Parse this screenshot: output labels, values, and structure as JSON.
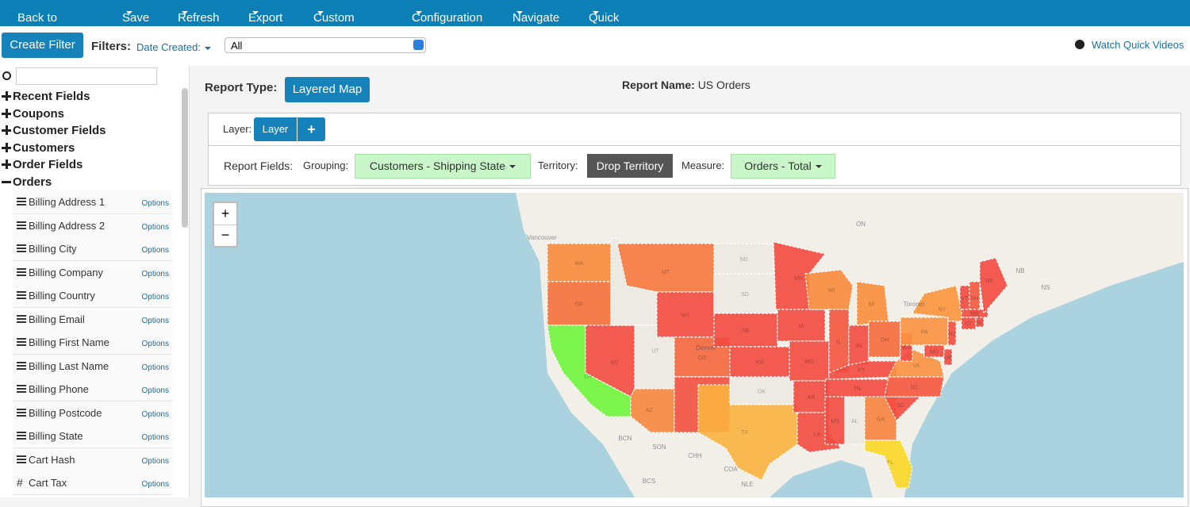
{
  "nav": {
    "items": [
      "Back to Reports",
      "Save",
      "Refresh",
      "Export",
      "Custom Field",
      "Configuration",
      "Navigate",
      "Quick Actions"
    ]
  },
  "toolbar": {
    "create_filter": "Create Filter",
    "filters_label": "Filters:",
    "date_filter": "Date Created:",
    "select": "All",
    "help": "Watch Quick Videos"
  },
  "sidebar": {
    "groups": [
      "Recent Fields",
      "Coupons",
      "Customer Fields",
      "Customers",
      "Order Fields"
    ],
    "expanded": "Orders",
    "options_label": "Options",
    "fields": [
      {
        "name": "Billing Address 1"
      },
      {
        "name": "Billing Address 2"
      },
      {
        "name": "Billing City"
      },
      {
        "name": "Billing Company"
      },
      {
        "name": "Billing Country"
      },
      {
        "name": "Billing Email"
      },
      {
        "name": "Billing First Name"
      },
      {
        "name": "Billing Last Name"
      },
      {
        "name": "Billing Phone"
      },
      {
        "name": "Billing Postcode"
      },
      {
        "name": "Billing State"
      },
      {
        "name": "Cart Hash"
      },
      {
        "name": "Cart Tax",
        "icon": "#"
      }
    ]
  },
  "report": {
    "type_label": "Report Type:",
    "type_button": "Layered Map",
    "name_label": "Report Name:",
    "name": "US Orders",
    "layer_label": "Layer:",
    "layer_button": "Layer",
    "layer_add": "+",
    "fields_label": "Report Fields:",
    "grouping_label": "Grouping:",
    "grouping": "Customers - Shipping State",
    "territory_label": "Territory:",
    "territory": "Drop Territory",
    "measure_label": "Measure:",
    "measure": "Orders - Total"
  },
  "map": {
    "zoom_in": "+",
    "zoom_out": "−",
    "states": [
      {
        "label": "WA",
        "color": "#f98a3c"
      },
      {
        "label": "OR",
        "color": "#f5703b"
      },
      {
        "label": "CA",
        "color": "#6ef53a"
      },
      {
        "label": "NV",
        "color": "#f34a40"
      },
      {
        "label": "ID",
        "color": "#ece9e3"
      },
      {
        "label": "MT",
        "color": "#f7773d"
      },
      {
        "label": "WY",
        "color": "#f34a40"
      },
      {
        "label": "UT",
        "color": "#ece9e3"
      },
      {
        "label": "CO",
        "color": "#f4673c"
      },
      {
        "label": "AZ",
        "color": "#f7863f"
      },
      {
        "label": "NM",
        "color": "#f3503f"
      },
      {
        "label": "ND",
        "color": "#ece9e3"
      },
      {
        "label": "SD",
        "color": "#ece9e3"
      },
      {
        "label": "NE",
        "color": "#f34a40"
      },
      {
        "label": "KS",
        "color": "#f34a40"
      },
      {
        "label": "OK",
        "color": "#ece9e3"
      },
      {
        "label": "TX",
        "color": "#fbb23f"
      },
      {
        "label": "MN",
        "color": "#f34a40"
      },
      {
        "label": "IA",
        "color": "#f34a40"
      },
      {
        "label": "MO",
        "color": "#f34a40"
      },
      {
        "label": "AR",
        "color": "#f34a40"
      },
      {
        "label": "LA",
        "color": "#f34a40"
      },
      {
        "label": "WI",
        "color": "#f98a3c"
      },
      {
        "label": "IL",
        "color": "#f4553e"
      },
      {
        "label": "MI",
        "color": "#fa8e3b"
      },
      {
        "label": "IN",
        "color": "#f34a40"
      },
      {
        "label": "OH",
        "color": "#f66b3c"
      },
      {
        "label": "KY",
        "color": "#f34a40"
      },
      {
        "label": "TN",
        "color": "#f34a40"
      },
      {
        "label": "MS",
        "color": "#f34a40"
      },
      {
        "label": "AL",
        "color": "#ece9e3"
      },
      {
        "label": "GA",
        "color": "#f7823d"
      },
      {
        "label": "FL",
        "color": "#f9d726"
      },
      {
        "label": "SC",
        "color": "#f34a40"
      },
      {
        "label": "NC",
        "color": "#f5563e"
      },
      {
        "label": "VA",
        "color": "#f99240"
      },
      {
        "label": "WV",
        "color": "#f34a40"
      },
      {
        "label": "PA",
        "color": "#f99240"
      },
      {
        "label": "NY",
        "color": "#fb943b"
      },
      {
        "label": "NJ",
        "color": "#f34a40"
      },
      {
        "label": "MD",
        "color": "#f34a40"
      },
      {
        "label": "DE",
        "color": "#f34a40"
      },
      {
        "label": "VT",
        "color": "#f34a40"
      },
      {
        "label": "NH",
        "color": "#f5563e"
      },
      {
        "label": "MA",
        "color": "#f34a40"
      },
      {
        "label": "CT",
        "color": "#f34a40"
      },
      {
        "label": "RI",
        "color": "#f34a40"
      },
      {
        "label": "ME",
        "color": "#f34a40"
      }
    ],
    "places": [
      "Vancouver",
      "ON",
      "Toronto",
      "NB",
      "NS",
      "BCN",
      "SON",
      "CHH",
      "BCS",
      "COA",
      "NLE",
      "Denver"
    ]
  }
}
